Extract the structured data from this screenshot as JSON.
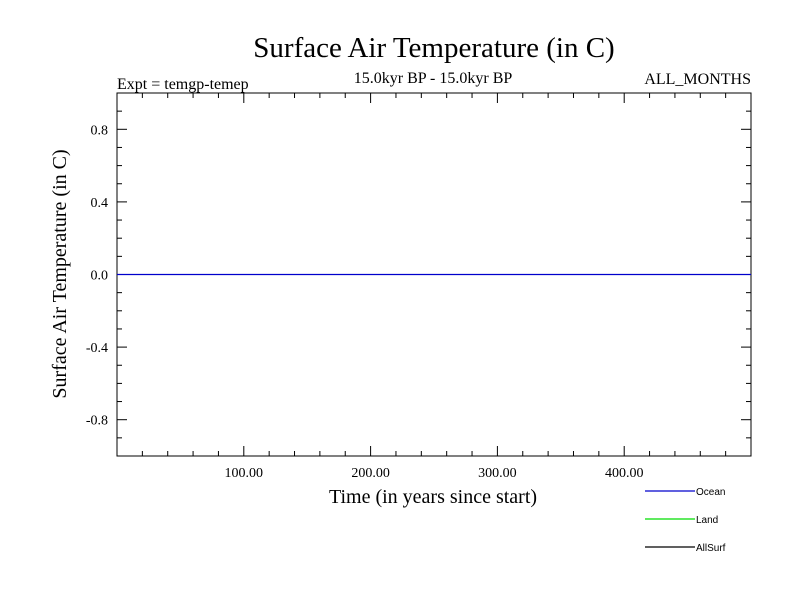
{
  "chart_data": {
    "type": "line",
    "title": "Surface Air Temperature (in C)",
    "subtitle_left": "Expt = temgp-temep",
    "subtitle_center": "15.0kyr BP - 15.0kyr BP",
    "subtitle_right": "ALL_MONTHS",
    "xlabel": "Time (in years since start)",
    "ylabel": "Surface Air Temperature (in C)",
    "xlim": [
      0,
      500
    ],
    "ylim": [
      -1.0,
      1.0
    ],
    "x_ticks": [
      100,
      200,
      300,
      400
    ],
    "x_tick_labels": [
      "100.00",
      "200.00",
      "300.00",
      "400.00"
    ],
    "x_minor_step": 20,
    "y_ticks": [
      0.8,
      0.4,
      0.0,
      -0.4,
      -0.8
    ],
    "y_tick_labels": [
      "0.8",
      "0.4",
      "0.0",
      "-0.4",
      "-0.8"
    ],
    "y_minor_step": 0.1,
    "legend_position": "bottom-right, below plot",
    "series": [
      {
        "name": "Ocean",
        "color": "#0000cc",
        "x": [
          0,
          500
        ],
        "values": [
          0.0,
          0.0
        ]
      },
      {
        "name": "Land",
        "color": "#00dd00",
        "x": [],
        "values": []
      },
      {
        "name": "AllSurf",
        "color": "#000000",
        "x": [],
        "values": []
      }
    ]
  }
}
